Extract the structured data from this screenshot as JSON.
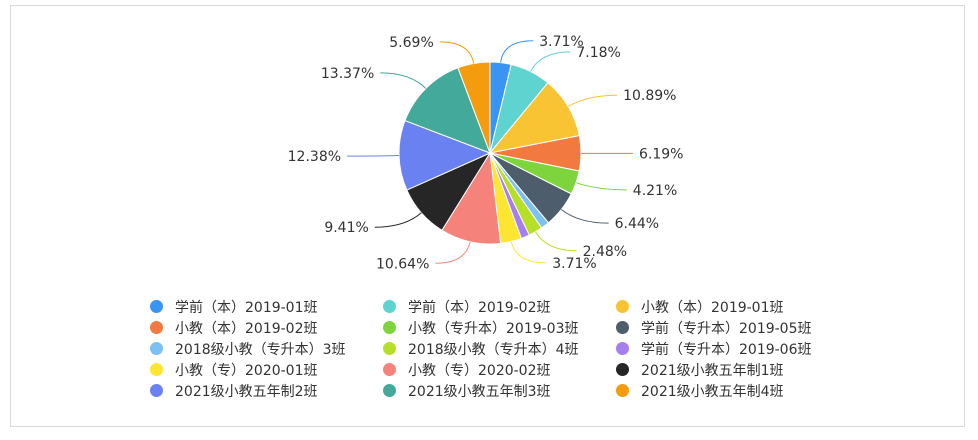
{
  "chart_data": {
    "type": "pie",
    "legend_position": "bottom",
    "slices": [
      {
        "name": "学前（本）2019-01班",
        "value": 3.71,
        "label": "3.71%",
        "color": "#3a95f2"
      },
      {
        "name": "学前（本）2019-02班",
        "value": 7.18,
        "label": "7.18%",
        "color": "#5ed3d0"
      },
      {
        "name": "小教（本）2019-01班",
        "value": 10.89,
        "label": "10.89%",
        "color": "#f9c434"
      },
      {
        "name": "小教（本）2019-02班",
        "value": 6.19,
        "label": "6.19%",
        "color": "#f27a40"
      },
      {
        "name": "小教（专升本）2019-03班",
        "value": 4.21,
        "label": "4.21%",
        "color": "#7ed43c"
      },
      {
        "name": "学前（专升本）2019-05班",
        "value": 6.44,
        "label": "6.44%",
        "color": "#4e5d6c"
      },
      {
        "name": "2018级小教（专升本）3班",
        "value": 1.49,
        "label": "",
        "color": "#7cc0f4"
      },
      {
        "name": "2018级小教（专升本）4班",
        "value": 2.48,
        "label": "2.48%",
        "color": "#b6e027"
      },
      {
        "name": "学前（专升本）2019-06班",
        "value": 1.49,
        "label": "",
        "color": "#a77eed"
      },
      {
        "name": "小教（专）2020-01班",
        "value": 3.71,
        "label": "3.71%",
        "color": "#fde632"
      },
      {
        "name": "小教（专）2020-02班",
        "value": 10.64,
        "label": "10.64%",
        "color": "#f6827c"
      },
      {
        "name": "2021级小教五年制1班",
        "value": 9.41,
        "label": "9.41%",
        "color": "#262626"
      },
      {
        "name": "2021级小教五年制2班",
        "value": 12.38,
        "label": "12.38%",
        "color": "#6a82f1"
      },
      {
        "name": "2021级小教五年制3班",
        "value": 13.37,
        "label": "13.37%",
        "color": "#43a99a"
      },
      {
        "name": "2021级小教五年制4班",
        "value": 5.69,
        "label": "5.69%",
        "color": "#f59b0e"
      }
    ]
  }
}
